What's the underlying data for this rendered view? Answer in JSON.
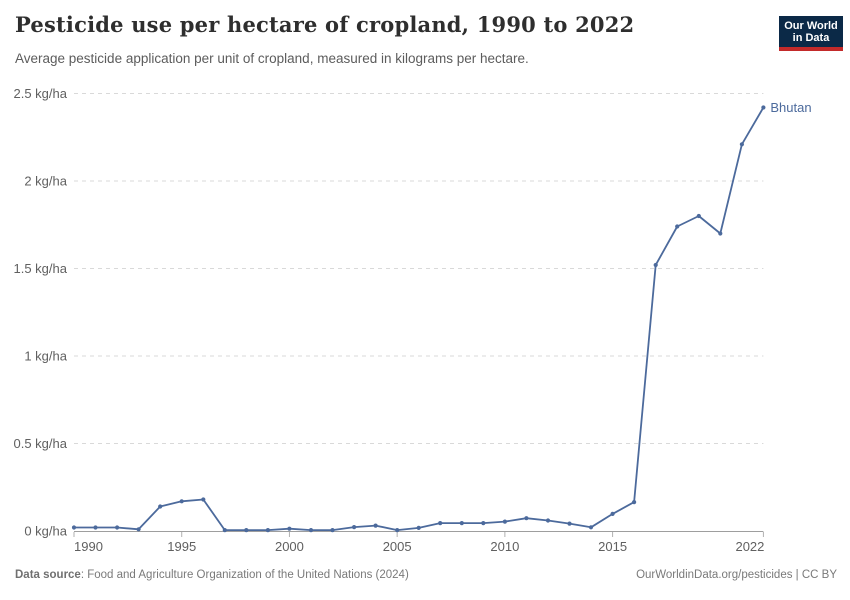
{
  "header": {
    "title": "Pesticide use per hectare of cropland, 1990 to 2022",
    "subtitle": "Average pesticide application per unit of cropland, measured in kilograms per hectare.",
    "logo": {
      "line1": "Our World",
      "line2": "in Data"
    }
  },
  "footer": {
    "source_label": "Data source",
    "source_text": ": Food and Agriculture Organization of the United Nations (2024)",
    "credit": "OurWorldinData.org/pesticides | CC BY"
  },
  "colors": {
    "series_blue": "#4c6a9c",
    "logo_navy": "#0b2947",
    "logo_red": "#c32a2a",
    "gridline": "#d9d9d9",
    "axis_line": "#9e9e9e",
    "tick_mark": "#b0b0b0",
    "axis_text": "#606060"
  },
  "chart_data": {
    "type": "line",
    "title": "Pesticide use per hectare of cropland, 1990 to 2022",
    "subtitle": "Average pesticide application per unit of cropland, measured in kilograms per hectare.",
    "xlabel": "",
    "ylabel": "kg/ha",
    "xlim": [
      1990,
      2022
    ],
    "ylim": [
      0,
      2.5
    ],
    "grid": "horizontal-dashed",
    "legend_position": "end-of-line-label",
    "x_ticks": [
      1990,
      1995,
      2000,
      2005,
      2010,
      2015,
      2022
    ],
    "y_ticks": [
      {
        "value": 0,
        "label": "0 kg/ha"
      },
      {
        "value": 0.5,
        "label": "0.5 kg/ha"
      },
      {
        "value": 1,
        "label": "1 kg/ha"
      },
      {
        "value": 1.5,
        "label": "1.5 kg/ha"
      },
      {
        "value": 2,
        "label": "2 kg/ha"
      },
      {
        "value": 2.5,
        "label": "2.5 kg/ha"
      }
    ],
    "series": [
      {
        "name": "Bhutan",
        "color": "#4c6a9c",
        "x": [
          1990,
          1991,
          1992,
          1993,
          1994,
          1995,
          1996,
          1997,
          1998,
          1999,
          2000,
          2001,
          2002,
          2003,
          2004,
          2005,
          2006,
          2007,
          2008,
          2009,
          2010,
          2011,
          2012,
          2013,
          2014,
          2015,
          2016,
          2017,
          2018,
          2019,
          2020,
          2021,
          2022
        ],
        "values": [
          0.02,
          0.02,
          0.02,
          0.01,
          0.14,
          0.17,
          0.18,
          0.005,
          0.005,
          0.005,
          0.013,
          0.005,
          0.005,
          0.022,
          0.031,
          0.005,
          0.018,
          0.045,
          0.045,
          0.045,
          0.054,
          0.073,
          0.06,
          0.042,
          0.021,
          0.098,
          0.165,
          1.52,
          1.74,
          1.8,
          1.7,
          2.21,
          2.42
        ]
      }
    ]
  }
}
